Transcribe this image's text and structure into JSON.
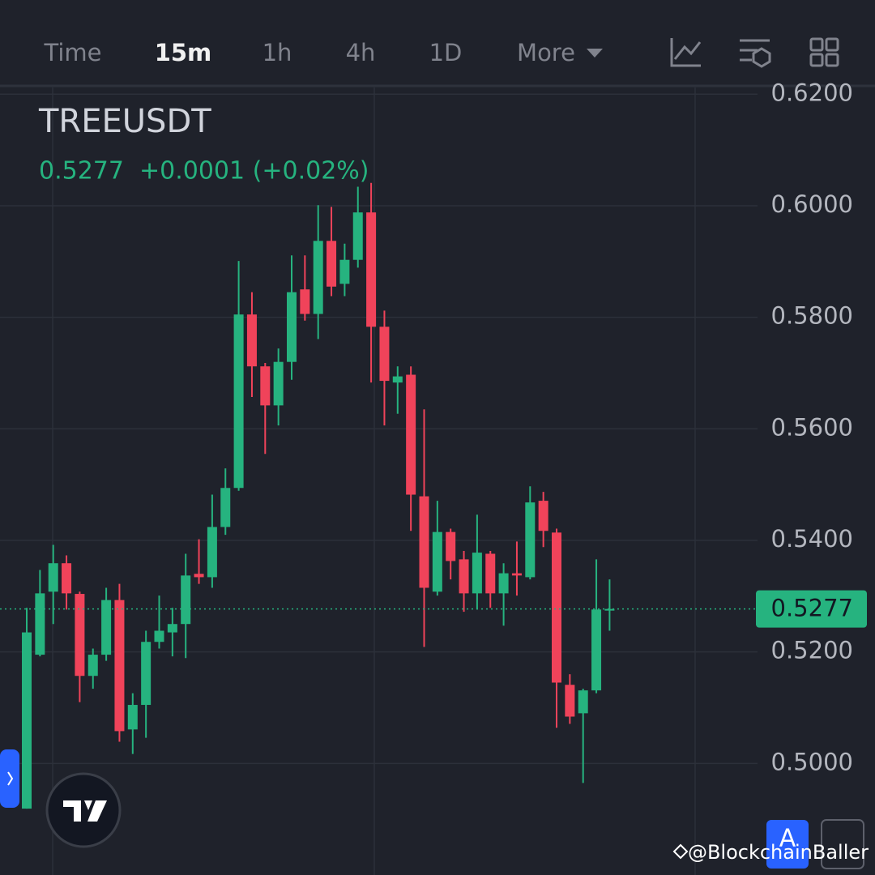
{
  "toolbar": {
    "tabs": [
      "Time",
      "15m",
      "1h",
      "4h",
      "1D",
      "More"
    ],
    "active": 1
  },
  "chart_data": {
    "type": "candlestick",
    "title": "TREEUSDT",
    "last_value": 0.5277,
    "last_label": "0.5277",
    "change": "+0.0001 (+0.02%)",
    "up_color": "#26b37f",
    "down_color": "#f0435a",
    "open": [
      0.4919,
      0.5195,
      0.5308,
      0.5359,
      0.5304,
      0.5157,
      0.5195,
      0.5293,
      0.5061,
      0.5105,
      0.5218,
      0.5235,
      0.525,
      0.534,
      0.5334,
      0.5424,
      0.5494,
      0.5805,
      0.5712,
      0.5642,
      0.572,
      0.585,
      0.5806,
      0.5937,
      0.586,
      0.5903,
      0.5988,
      0.5783,
      0.5683,
      0.5697,
      0.5479,
      0.5308,
      0.5415,
      0.5366,
      0.5305,
      0.5376,
      0.5305,
      0.5341,
      0.5334,
      0.5471,
      0.5414,
      0.5141,
      0.509,
      0.5131,
      0.5276
    ],
    "high": [
      0.5279,
      0.5347,
      0.5392,
      0.5373,
      0.5308,
      0.5206,
      0.5315,
      0.5322,
      0.5126,
      0.5238,
      0.5301,
      0.5279,
      0.5376,
      0.5402,
      0.5482,
      0.5529,
      0.5901,
      0.5845,
      0.5718,
      0.5744,
      0.5911,
      0.5911,
      0.6001,
      0.5998,
      0.5932,
      0.6034,
      0.6041,
      0.5812,
      0.5712,
      0.5712,
      0.5635,
      0.5471,
      0.5421,
      0.5381,
      0.5446,
      0.5381,
      0.5359,
      0.5398,
      0.5497,
      0.5487,
      0.5421,
      0.516,
      0.5134,
      0.5366,
      0.533
    ],
    "low": [
      0.4919,
      0.5192,
      0.525,
      0.5276,
      0.511,
      0.5134,
      0.5184,
      0.5039,
      0.5017,
      0.5046,
      0.5206,
      0.5192,
      0.5189,
      0.5322,
      0.5315,
      0.541,
      0.5489,
      0.5657,
      0.5555,
      0.5606,
      0.5688,
      0.5794,
      0.5761,
      0.5838,
      0.5838,
      0.5889,
      0.5683,
      0.5606,
      0.5627,
      0.5417,
      0.5209,
      0.5301,
      0.533,
      0.5272,
      0.5276,
      0.5279,
      0.5247,
      0.5301,
      0.533,
      0.5388,
      0.5064,
      0.5071,
      0.4965,
      0.5126,
      0.5238
    ],
    "close": [
      0.5235,
      0.5305,
      0.5359,
      0.5305,
      0.5157,
      0.5195,
      0.5293,
      0.5058,
      0.5105,
      0.5218,
      0.5238,
      0.525,
      0.5337,
      0.5334,
      0.5424,
      0.5494,
      0.5805,
      0.5712,
      0.5642,
      0.572,
      0.5845,
      0.5806,
      0.5937,
      0.5855,
      0.5903,
      0.5988,
      0.5783,
      0.5686,
      0.5694,
      0.5482,
      0.5315,
      0.5415,
      0.5363,
      0.5305,
      0.5378,
      0.5305,
      0.5341,
      0.5337,
      0.5468,
      0.5417,
      0.5145,
      0.5084,
      0.5131,
      0.5276,
      0.5277
    ],
    "ylim": [
      0.48,
      0.6212
    ],
    "yticks": [
      {
        "value": 0.5,
        "label": "0.5000"
      },
      {
        "value": 0.52,
        "label": "0.5200"
      },
      {
        "value": 0.54,
        "label": "0.5400"
      },
      {
        "value": 0.56,
        "label": "0.5600"
      },
      {
        "value": 0.58,
        "label": "0.5800"
      },
      {
        "value": 0.6,
        "label": "0.6000"
      },
      {
        "value": 0.62,
        "label": "0.6200"
      }
    ],
    "grid": true
  },
  "watermark": "@BlockchainBaller",
  "button": "A"
}
